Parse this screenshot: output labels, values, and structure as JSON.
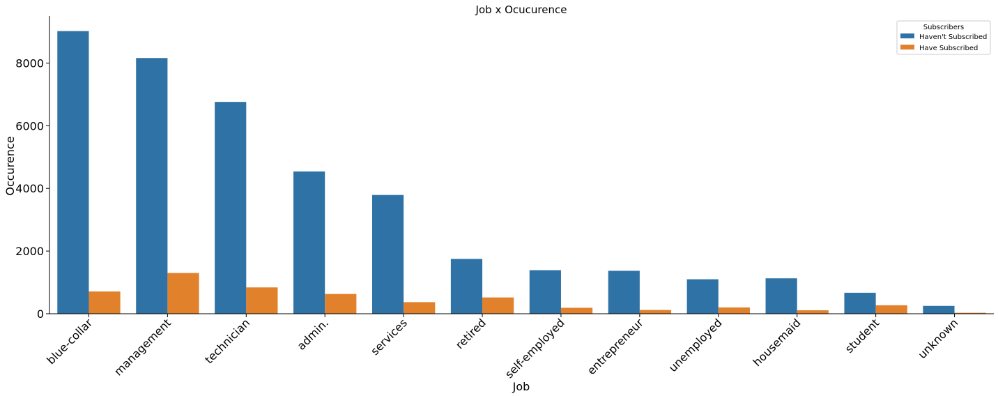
{
  "chart_data": {
    "type": "bar",
    "title": "Job x Ocucurence",
    "xlabel": "Job",
    "ylabel": "Occurence",
    "categories": [
      "blue-collar",
      "management",
      "technician",
      "admin.",
      "services",
      "retired",
      "self-employed",
      "entrepreneur",
      "unemployed",
      "housemaid",
      "student",
      "unknown"
    ],
    "series": [
      {
        "name": "Haven't Subscribed",
        "color": "#2f72a5",
        "values": [
          9020,
          8160,
          6760,
          4540,
          3790,
          1750,
          1390,
          1370,
          1100,
          1130,
          670,
          250
        ]
      },
      {
        "name": "Have Subscribed",
        "color": "#e1812c",
        "values": [
          710,
          1300,
          840,
          630,
          370,
          520,
          190,
          120,
          200,
          110,
          270,
          30
        ]
      }
    ],
    "ylim": [
      0,
      9500
    ],
    "yticks": [
      0,
      2000,
      4000,
      6000,
      8000
    ],
    "legend": {
      "title": "Subscribers",
      "placement": "top-right"
    },
    "grid": false
  }
}
